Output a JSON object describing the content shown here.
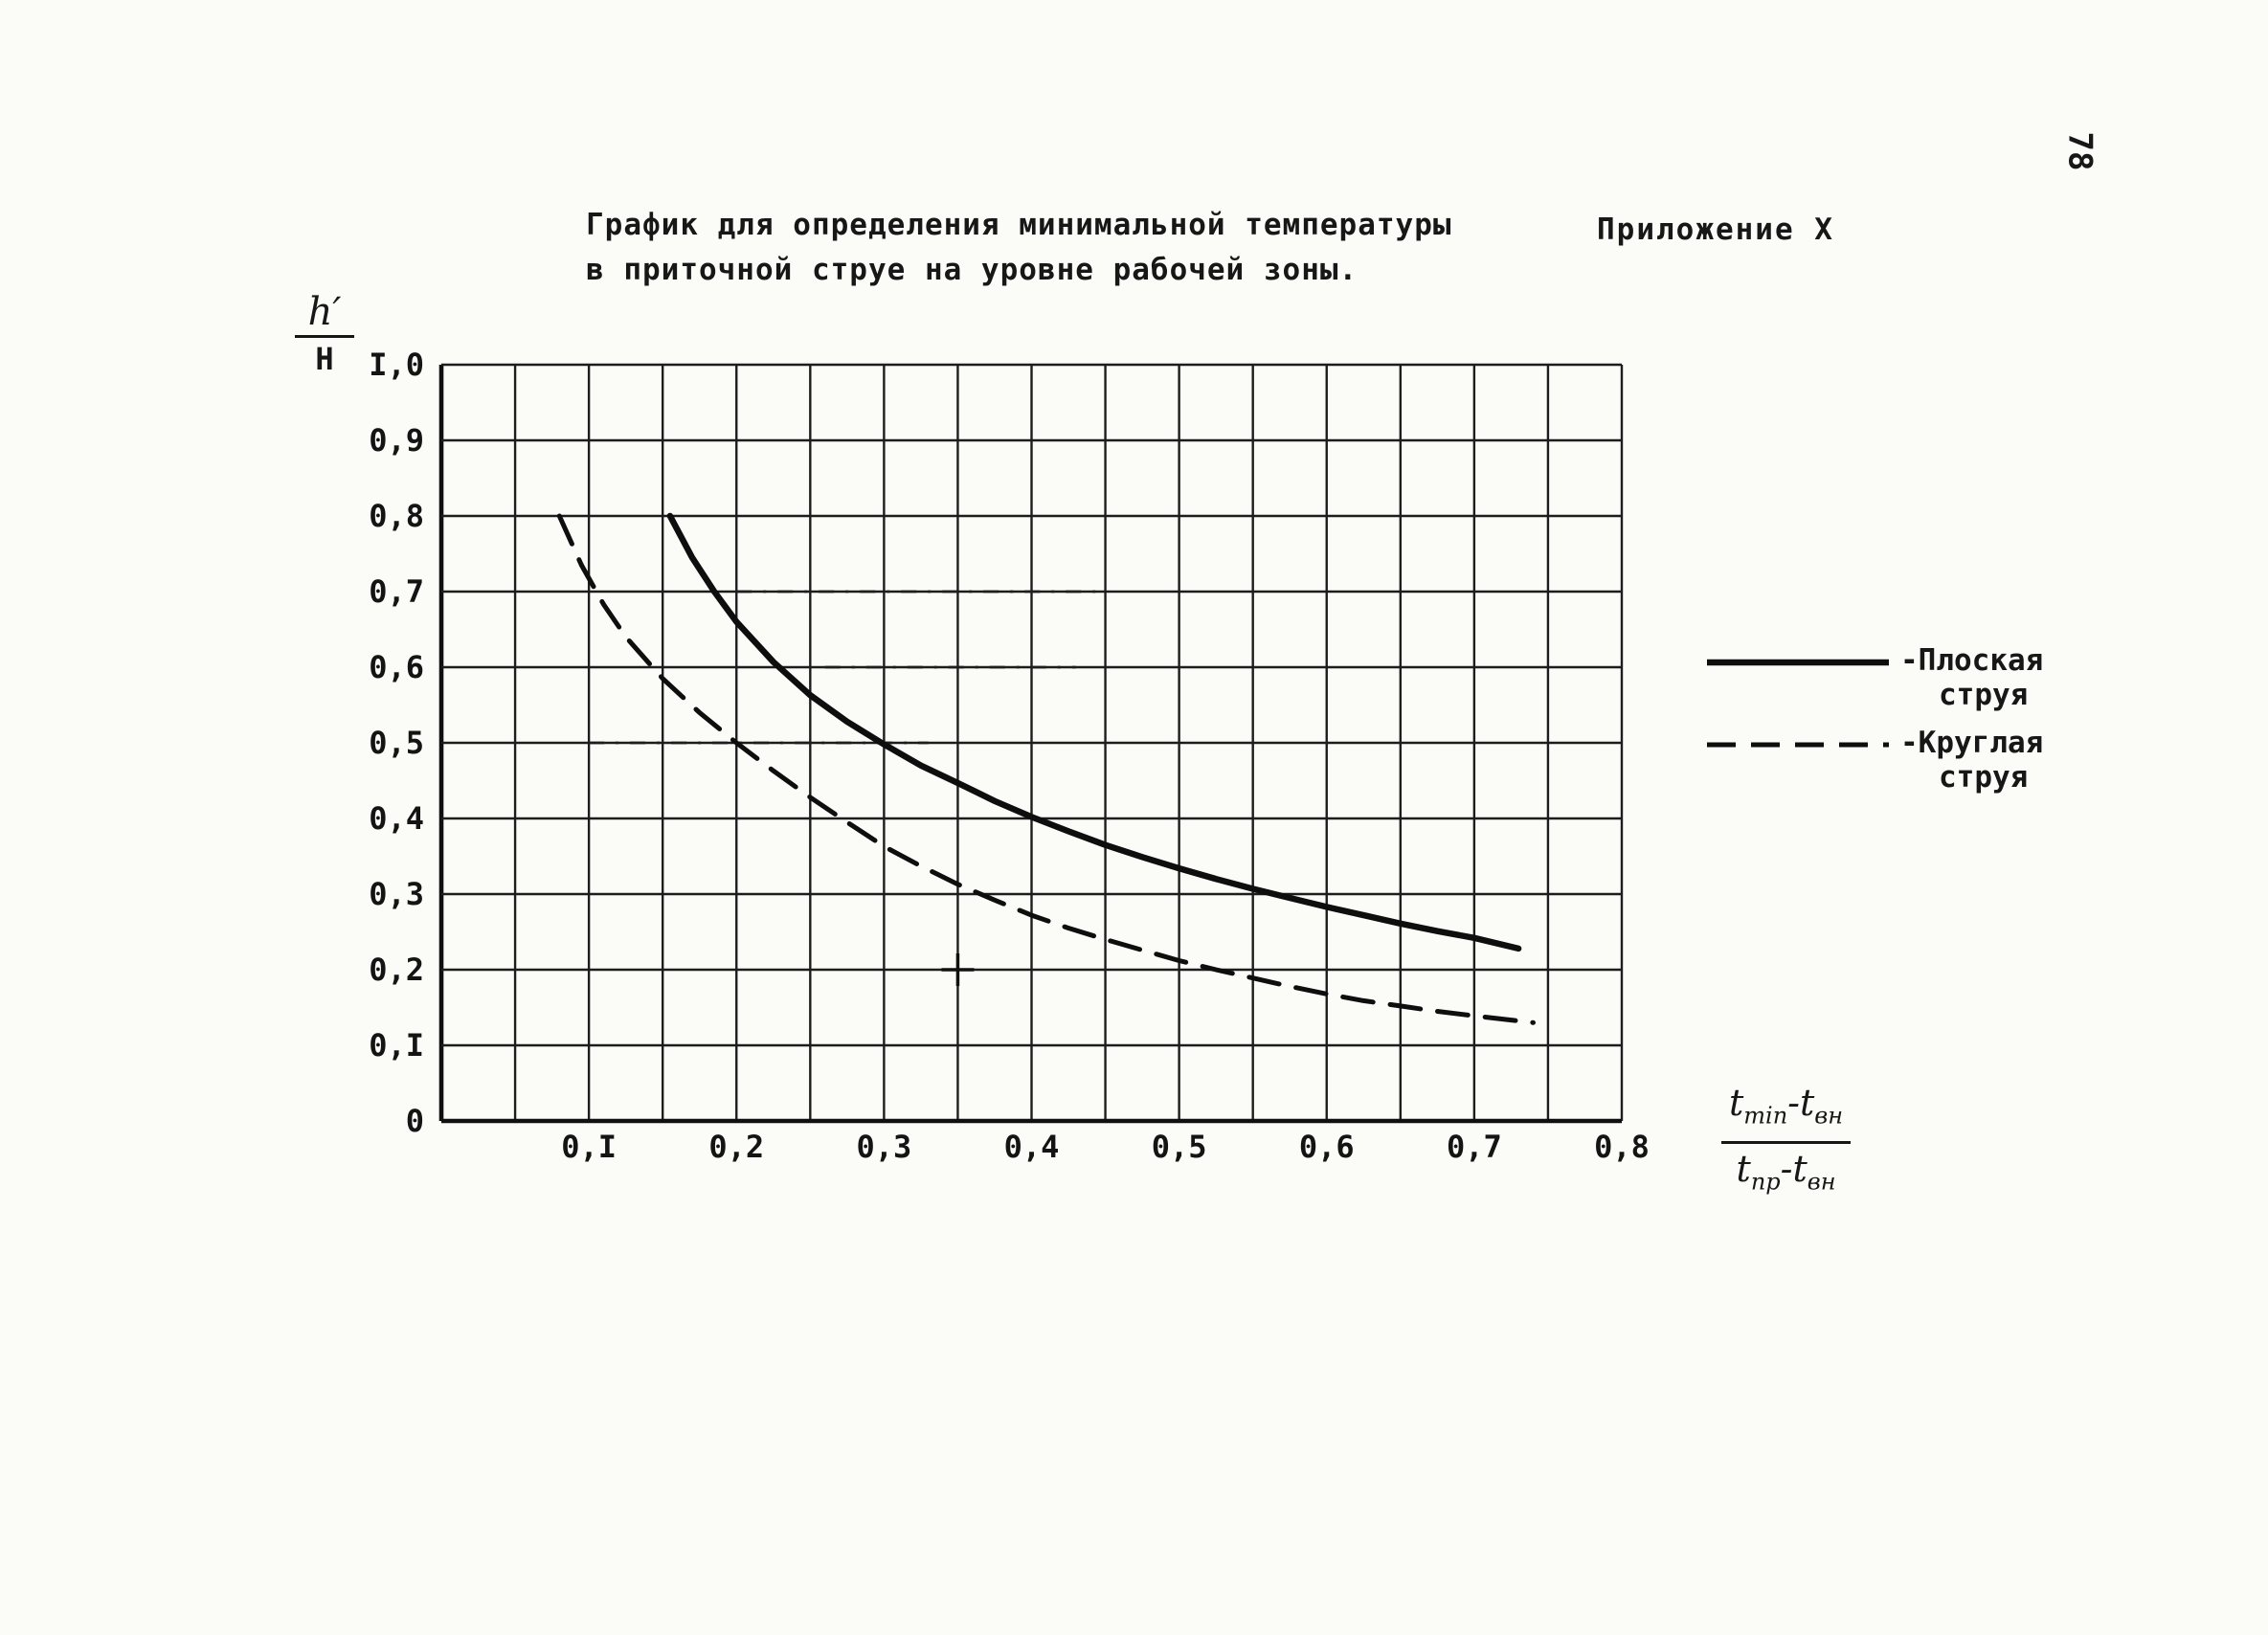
{
  "page": {
    "page_number": "78",
    "appendix_label": "Приложение  X",
    "title_line1": "График для определения минимальной температуры",
    "title_line2": "в приточной струе на уровне рабочей зоны."
  },
  "chart_data": {
    "type": "line",
    "title": "График для определения минимальной температуры в приточной струе на уровне рабочей зоны.",
    "xlabel": "(t min − t вн) / (t пр − t вн)",
    "ylabel": "h′/H",
    "xlim": [
      0,
      0.8
    ],
    "ylim": [
      0,
      1.0
    ],
    "x_grid_step": 0.05,
    "y_grid_step": 0.1,
    "grid": true,
    "legend_position": "right",
    "x_ticks": [
      {
        "value": 0.1,
        "label": "0,I"
      },
      {
        "value": 0.2,
        "label": "0,2"
      },
      {
        "value": 0.3,
        "label": "0,3"
      },
      {
        "value": 0.4,
        "label": "0,4"
      },
      {
        "value": 0.5,
        "label": "0,5"
      },
      {
        "value": 0.6,
        "label": "0,6"
      },
      {
        "value": 0.7,
        "label": "0,7"
      },
      {
        "value": 0.8,
        "label": "0,8"
      }
    ],
    "y_ticks": [
      {
        "value": 0.0,
        "label": "0"
      },
      {
        "value": 0.1,
        "label": "0,I"
      },
      {
        "value": 0.2,
        "label": "0,2"
      },
      {
        "value": 0.3,
        "label": "0,3"
      },
      {
        "value": 0.4,
        "label": "0,4"
      },
      {
        "value": 0.5,
        "label": "0,5"
      },
      {
        "value": 0.6,
        "label": "0,6"
      },
      {
        "value": 0.7,
        "label": "0,7"
      },
      {
        "value": 0.8,
        "label": "0,8"
      },
      {
        "value": 0.9,
        "label": "0,9"
      },
      {
        "value": 1.0,
        "label": "I,0"
      }
    ],
    "series": [
      {
        "id": "flat-jet",
        "name": "Плоская струя",
        "style": "solid",
        "points": [
          [
            0.155,
            0.8
          ],
          [
            0.17,
            0.745
          ],
          [
            0.185,
            0.7
          ],
          [
            0.2,
            0.66
          ],
          [
            0.225,
            0.607
          ],
          [
            0.25,
            0.563
          ],
          [
            0.275,
            0.528
          ],
          [
            0.3,
            0.498
          ],
          [
            0.325,
            0.47
          ],
          [
            0.35,
            0.447
          ],
          [
            0.375,
            0.423
          ],
          [
            0.4,
            0.402
          ],
          [
            0.425,
            0.383
          ],
          [
            0.45,
            0.365
          ],
          [
            0.475,
            0.349
          ],
          [
            0.5,
            0.334
          ],
          [
            0.525,
            0.32
          ],
          [
            0.55,
            0.307
          ],
          [
            0.575,
            0.295
          ],
          [
            0.6,
            0.283
          ],
          [
            0.625,
            0.272
          ],
          [
            0.65,
            0.261
          ],
          [
            0.675,
            0.251
          ],
          [
            0.7,
            0.242
          ],
          [
            0.73,
            0.228
          ]
        ]
      },
      {
        "id": "round-jet",
        "name": "Круглая струя",
        "style": "dashed",
        "points": [
          [
            0.08,
            0.8
          ],
          [
            0.095,
            0.735
          ],
          [
            0.11,
            0.683
          ],
          [
            0.125,
            0.64
          ],
          [
            0.15,
            0.585
          ],
          [
            0.175,
            0.54
          ],
          [
            0.2,
            0.5
          ],
          [
            0.225,
            0.463
          ],
          [
            0.25,
            0.428
          ],
          [
            0.275,
            0.395
          ],
          [
            0.3,
            0.363
          ],
          [
            0.325,
            0.337
          ],
          [
            0.35,
            0.313
          ],
          [
            0.375,
            0.292
          ],
          [
            0.4,
            0.272
          ],
          [
            0.425,
            0.255
          ],
          [
            0.45,
            0.24
          ],
          [
            0.475,
            0.226
          ],
          [
            0.5,
            0.212
          ],
          [
            0.525,
            0.2
          ],
          [
            0.55,
            0.189
          ],
          [
            0.575,
            0.178
          ],
          [
            0.6,
            0.168
          ],
          [
            0.625,
            0.159
          ],
          [
            0.65,
            0.152
          ],
          [
            0.675,
            0.145
          ],
          [
            0.7,
            0.139
          ],
          [
            0.74,
            0.13
          ]
        ]
      }
    ],
    "marker_cross": {
      "x": 0.35,
      "y": 0.2
    },
    "emphasis_marks": [
      {
        "y": 0.7,
        "x1": 0.2,
        "x2": 0.45
      },
      {
        "y": 0.6,
        "x1": 0.26,
        "x2": 0.43
      },
      {
        "y": 0.5,
        "x1": 0.1,
        "x2": 0.33
      }
    ],
    "y_axis_label": {
      "numerator": "h′",
      "denominator": "Н"
    }
  },
  "legend": {
    "items": [
      {
        "id": "flat-jet",
        "style": "solid",
        "line1": "-Плоская",
        "line2": "струя"
      },
      {
        "id": "round-jet",
        "style": "dashed",
        "line1": "-Круглая",
        "line2": "струя"
      }
    ]
  },
  "x_axis_label": {
    "num_t1": "t",
    "num_sub1": "min",
    "num_dash": "-",
    "num_t2": "t",
    "num_sub2": "вн",
    "den_t1": "t",
    "den_sub1": "пр",
    "den_dash": "-",
    "den_t2": "t",
    "den_sub2": "вн"
  },
  "colors": {
    "ink": "#171717",
    "paper": "#fbfbf8"
  }
}
